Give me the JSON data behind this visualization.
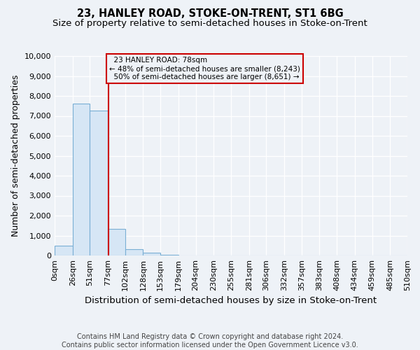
{
  "title": "23, HANLEY ROAD, STOKE-ON-TRENT, ST1 6BG",
  "subtitle": "Size of property relative to semi-detached houses in Stoke-on-Trent",
  "xlabel": "Distribution of semi-detached houses by size in Stoke-on-Trent",
  "ylabel": "Number of semi-detached properties",
  "footer": "Contains HM Land Registry data © Crown copyright and database right 2024.\nContains public sector information licensed under the Open Government Licence v3.0.",
  "bin_edges": [
    0,
    26,
    51,
    77,
    102,
    128,
    153,
    179,
    204,
    230,
    255,
    281,
    306,
    332,
    357,
    383,
    408,
    434,
    459,
    485,
    510
  ],
  "bar_heights": [
    500,
    7600,
    7250,
    1350,
    300,
    150,
    50,
    10,
    5,
    2,
    1,
    0,
    0,
    0,
    0,
    0,
    0,
    0,
    0,
    0
  ],
  "bar_color": "#d6e6f5",
  "bar_edge_color": "#7aafd4",
  "property_size": 78,
  "property_label": "23 HANLEY ROAD: 78sqm",
  "pct_smaller": 48,
  "n_smaller": 8243,
  "pct_larger": 50,
  "n_larger": 8651,
  "vline_color": "#cc0000",
  "annotation_box_color": "#cc0000",
  "ylim": [
    0,
    10000
  ],
  "yticks": [
    0,
    1000,
    2000,
    3000,
    4000,
    5000,
    6000,
    7000,
    8000,
    9000,
    10000
  ],
  "title_fontsize": 10.5,
  "subtitle_fontsize": 9.5,
  "axis_label_fontsize": 9,
  "tick_fontsize": 8,
  "footer_fontsize": 7,
  "background_color": "#eef2f7"
}
